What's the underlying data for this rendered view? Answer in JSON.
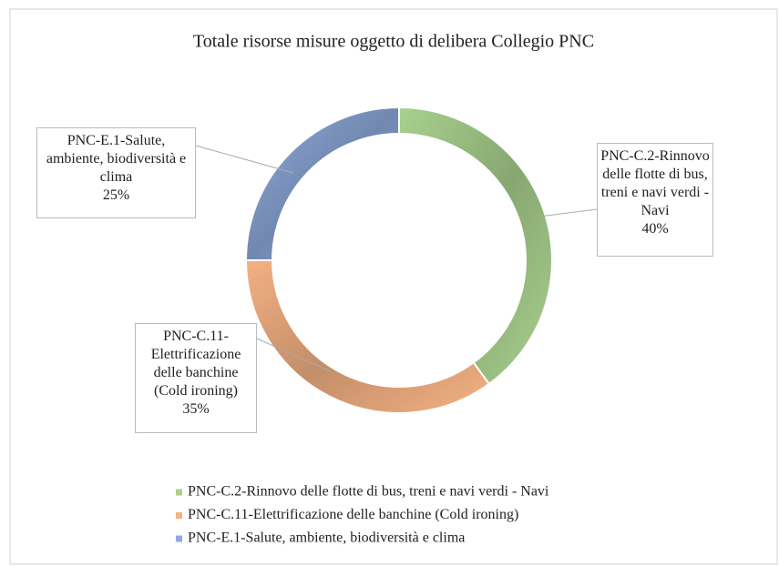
{
  "chart_data": {
    "type": "donut",
    "title": "Totale risorse misure oggetto di delibera Collegio PNC",
    "categories": [
      "PNC-C.2-Rinnovo delle flotte di bus, treni e navi verdi - Navi",
      "PNC-C.11-Elettrificazione delle banchine (Cold ironing)",
      "PNC-E.1-Salute, ambiente, biodiversità e clima"
    ],
    "values": [
      40,
      35,
      25
    ],
    "value_labels": [
      "40%",
      "35%",
      "25%"
    ],
    "colors": [
      "#a9d18e",
      "#f4b183",
      "#8faadc"
    ],
    "legend": "bottom"
  }
}
